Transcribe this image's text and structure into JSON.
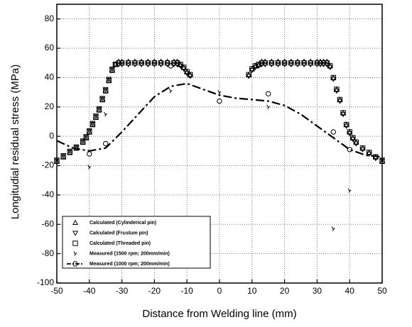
{
  "chart_data": {
    "type": "scatter",
    "xlabel": "Distance from Welding line (mm)",
    "ylabel": "Longitudial residual stress  (MPa)",
    "xlim": [
      -50,
      50
    ],
    "ylim": [
      -100,
      90
    ],
    "xticks": [
      -50,
      -40,
      -30,
      -20,
      -10,
      0,
      10,
      20,
      30,
      40,
      50
    ],
    "yticks": [
      -100,
      -80,
      -60,
      -40,
      -20,
      0,
      20,
      40,
      60,
      80
    ],
    "grid": true,
    "legend": "lower left",
    "series": [
      {
        "name": "Calculated (Cylinderical pin)",
        "color": "#000000",
        "marker": "triangle-up",
        "x": [
          -50,
          -48,
          -46,
          -44,
          -42,
          -41,
          -40,
          -39,
          -38,
          -37,
          -36,
          -35,
          -34,
          -33,
          -32,
          -31,
          -30,
          -28,
          -26,
          -24,
          -22,
          -20,
          -18,
          -16,
          -14,
          -13,
          -12,
          -11,
          -10,
          -9,
          9,
          10,
          11,
          12,
          13,
          14,
          16,
          18,
          20,
          22,
          24,
          26,
          28,
          30,
          31,
          32,
          33,
          34,
          35,
          36,
          37,
          38,
          39,
          40,
          41,
          42,
          44,
          46,
          48,
          50
        ],
        "values": [
          -17,
          -14,
          -11,
          -8,
          -4,
          -1,
          3,
          8,
          13,
          18,
          25,
          31,
          38,
          45,
          49,
          51,
          51,
          51,
          51,
          51,
          51,
          51,
          51,
          51,
          51,
          51,
          49,
          47,
          44,
          42,
          42,
          46,
          48,
          49,
          51,
          51,
          51,
          51,
          51,
          51,
          51,
          51,
          51,
          51,
          51,
          51,
          51,
          48,
          40,
          32,
          25,
          16,
          8,
          3,
          -1,
          -4,
          -8,
          -11,
          -14,
          -17
        ]
      },
      {
        "name": "Calculated (Frustum pin)",
        "color": "#000000",
        "marker": "triangle-down",
        "x": [
          -50,
          -48,
          -46,
          -44,
          -42,
          -41,
          -40,
          -39,
          -38,
          -37,
          -36,
          -35,
          -34,
          -33,
          -32,
          -31,
          -30,
          -28,
          -26,
          -24,
          -22,
          -20,
          -18,
          -16,
          -14,
          -13,
          -12,
          -11,
          -10,
          -9,
          9,
          10,
          11,
          12,
          13,
          14,
          16,
          18,
          20,
          22,
          24,
          26,
          28,
          30,
          31,
          32,
          33,
          34,
          35,
          36,
          37,
          38,
          39,
          40,
          41,
          42,
          44,
          46,
          48,
          50
        ],
        "values": [
          -16,
          -13,
          -10,
          -7,
          -3,
          0,
          4,
          9,
          14,
          19,
          26,
          32,
          39,
          46,
          49,
          49,
          49,
          49,
          49,
          49,
          49,
          49,
          49,
          49,
          49,
          49,
          48,
          46,
          43,
          41,
          41,
          45,
          47,
          48,
          49,
          49,
          49,
          49,
          49,
          49,
          49,
          49,
          49,
          49,
          49,
          49,
          49,
          47,
          39,
          31,
          24,
          15,
          7,
          2,
          -2,
          -5,
          -9,
          -12,
          -15,
          -16
        ]
      },
      {
        "name": "Calculated (Threaded pin)",
        "color": "#000000",
        "marker": "square",
        "x": [
          -50,
          -48,
          -46,
          -44,
          -42,
          -41,
          -40,
          -39,
          -38,
          -37,
          -36,
          -35,
          -34,
          -33,
          -32,
          -31,
          -30,
          -28,
          -26,
          -24,
          -22,
          -20,
          -18,
          -16,
          -14,
          -13,
          -12,
          -11,
          -10,
          -9,
          9,
          10,
          11,
          12,
          13,
          14,
          16,
          18,
          20,
          22,
          24,
          26,
          28,
          30,
          31,
          32,
          33,
          34,
          35,
          36,
          37,
          38,
          39,
          40,
          41,
          42,
          44,
          46,
          48,
          50
        ],
        "values": [
          -17,
          -14,
          -11,
          -8,
          -4,
          -1,
          3,
          8,
          13,
          18,
          25,
          31,
          38,
          45,
          49,
          50,
          50,
          50,
          50,
          50,
          50,
          50,
          50,
          50,
          50,
          50,
          49,
          47,
          44,
          42,
          42,
          46,
          48,
          49,
          50,
          50,
          50,
          50,
          50,
          50,
          50,
          50,
          50,
          50,
          50,
          50,
          50,
          48,
          40,
          32,
          25,
          16,
          8,
          3,
          -1,
          -4,
          -8,
          -11,
          -14,
          -17
        ]
      },
      {
        "name": "Measured (1500 rpm; 200mm/min)",
        "color": "#000000",
        "marker": "hook",
        "x": [
          -40,
          -35,
          -15,
          0,
          15,
          35,
          40
        ],
        "values": [
          -21,
          15,
          31,
          30,
          20,
          -63,
          -37
        ]
      },
      {
        "name": "Measured (1000 rpm; 200mm/min)",
        "color": "#000000",
        "marker": "circle",
        "x": [
          -40,
          -35,
          -15,
          0,
          15,
          35,
          40
        ],
        "values": [
          -12,
          -5,
          48,
          24,
          29,
          3,
          -9
        ],
        "fit_x": [
          -50,
          -45,
          -40,
          -35,
          -30,
          -25,
          -20,
          -15,
          -10,
          -5,
          0,
          5,
          10,
          15,
          20,
          25,
          30,
          35,
          40,
          45,
          50
        ],
        "fit_values": [
          -3,
          -8,
          -10,
          -8,
          3,
          15,
          27,
          34,
          36,
          32,
          28,
          26,
          25,
          24,
          21,
          15,
          7,
          -1,
          -9,
          -13,
          -14
        ]
      }
    ]
  }
}
